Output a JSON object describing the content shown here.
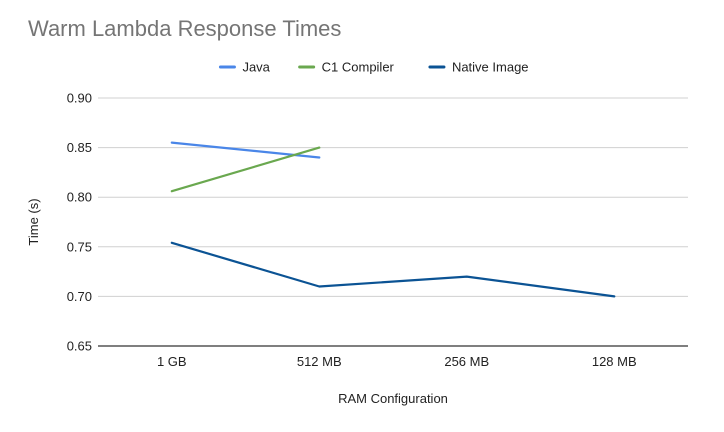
{
  "chart_data": {
    "type": "line",
    "title": "Warm Lambda Response Times",
    "xlabel": "RAM Configuration",
    "ylabel": "Time (s)",
    "categories": [
      "1 GB",
      "512 MB",
      "256 MB",
      "128 MB"
    ],
    "ylim": [
      0.65,
      0.9
    ],
    "yticks": [
      "0.65",
      "0.70",
      "0.75",
      "0.80",
      "0.85",
      "0.90"
    ],
    "grid": true,
    "legend_position": "top-center",
    "series": [
      {
        "name": "Java",
        "color": "#4a86e8",
        "values": [
          0.855,
          0.84,
          null,
          null
        ]
      },
      {
        "name": "C1 Compiler",
        "color": "#6aa84f",
        "values": [
          0.806,
          0.85,
          null,
          null
        ]
      },
      {
        "name": "Native Image",
        "color": "#0b5394",
        "values": [
          0.754,
          0.71,
          0.72,
          0.7
        ]
      }
    ]
  }
}
